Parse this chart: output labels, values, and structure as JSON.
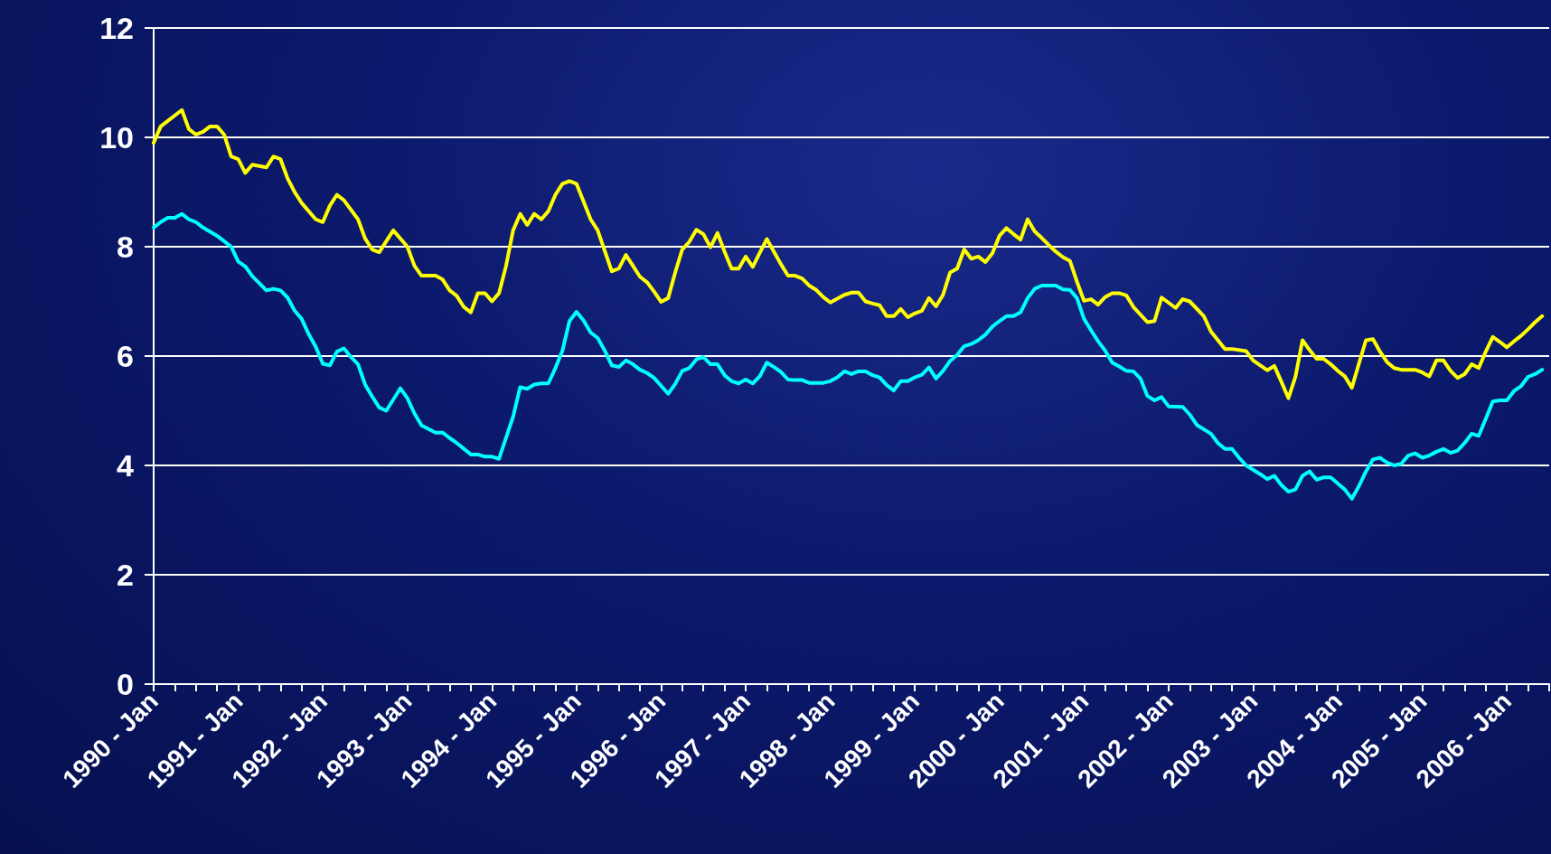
{
  "chart_data": {
    "type": "line",
    "marker": "none",
    "line_style": "solid",
    "grid": "y",
    "xlim": [
      "1990-01",
      "2006-07"
    ],
    "xticks": [
      {
        "value": "1990-01",
        "label": "1990 - Jan"
      },
      {
        "value": "1990-04",
        "label": null
      },
      {
        "value": "1990-07",
        "label": null
      },
      {
        "value": "1990-10",
        "label": null
      },
      {
        "value": "1991-01",
        "label": "1991 - Jan"
      },
      {
        "value": "1991-04",
        "label": null
      },
      {
        "value": "1991-07",
        "label": null
      },
      {
        "value": "1991-10",
        "label": null
      },
      {
        "value": "1992-01",
        "label": "1992 - Jan"
      },
      {
        "value": "1992-04",
        "label": null
      },
      {
        "value": "1992-07",
        "label": null
      },
      {
        "value": "1992-10",
        "label": null
      },
      {
        "value": "1993-01",
        "label": "1993 - Jan"
      },
      {
        "value": "1993-04",
        "label": null
      },
      {
        "value": "1993-07",
        "label": null
      },
      {
        "value": "1993-10",
        "label": null
      },
      {
        "value": "1994-01",
        "label": "1994 - Jan"
      },
      {
        "value": "1994-04",
        "label": null
      },
      {
        "value": "1994-07",
        "label": null
      },
      {
        "value": "1994-10",
        "label": null
      },
      {
        "value": "1995-01",
        "label": "1995 - Jan"
      },
      {
        "value": "1995-04",
        "label": null
      },
      {
        "value": "1995-07",
        "label": null
      },
      {
        "value": "1995-10",
        "label": null
      },
      {
        "value": "1996-01",
        "label": "1996 - Jan"
      },
      {
        "value": "1996-04",
        "label": null
      },
      {
        "value": "1996-07",
        "label": null
      },
      {
        "value": "1996-10",
        "label": null
      },
      {
        "value": "1997-01",
        "label": "1997 - Jan"
      },
      {
        "value": "1997-04",
        "label": null
      },
      {
        "value": "1997-07",
        "label": null
      },
      {
        "value": "1997-10",
        "label": null
      },
      {
        "value": "1998-01",
        "label": "1998 - Jan"
      },
      {
        "value": "1998-04",
        "label": null
      },
      {
        "value": "1998-07",
        "label": null
      },
      {
        "value": "1998-10",
        "label": null
      },
      {
        "value": "1999-01",
        "label": "1999 - Jan"
      },
      {
        "value": "1999-04",
        "label": null
      },
      {
        "value": "1999-07",
        "label": null
      },
      {
        "value": "1999-10",
        "label": null
      },
      {
        "value": "2000-01",
        "label": "2000 - Jan"
      },
      {
        "value": "2000-04",
        "label": null
      },
      {
        "value": "2000-07",
        "label": null
      },
      {
        "value": "2000-10",
        "label": null
      },
      {
        "value": "2001-01",
        "label": "2001 - Jan"
      },
      {
        "value": "2001-04",
        "label": null
      },
      {
        "value": "2001-07",
        "label": null
      },
      {
        "value": "2001-10",
        "label": null
      },
      {
        "value": "2002-01",
        "label": "2002 - Jan"
      },
      {
        "value": "2002-04",
        "label": null
      },
      {
        "value": "2002-07",
        "label": null
      },
      {
        "value": "2002-10",
        "label": null
      },
      {
        "value": "2003-01",
        "label": "2003 - Jan"
      },
      {
        "value": "2003-04",
        "label": null
      },
      {
        "value": "2003-07",
        "label": null
      },
      {
        "value": "2003-10",
        "label": null
      },
      {
        "value": "2004-01",
        "label": "2004 - Jan"
      },
      {
        "value": "2004-04",
        "label": null
      },
      {
        "value": "2004-07",
        "label": null
      },
      {
        "value": "2004-10",
        "label": null
      },
      {
        "value": "2005-01",
        "label": "2005 - Jan"
      },
      {
        "value": "2005-04",
        "label": null
      },
      {
        "value": "2005-07",
        "label": null
      },
      {
        "value": "2005-10",
        "label": null
      },
      {
        "value": "2006-01",
        "label": "2006 - Jan"
      },
      {
        "value": "2006-04",
        "label": null
      },
      {
        "value": "2006-07",
        "label": null
      }
    ],
    "ylim": [
      0,
      12
    ],
    "yticks": [
      0,
      2,
      4,
      6,
      8,
      10,
      12
    ],
    "series": [
      {
        "color": "#ffff00",
        "x": [
          "1990-01",
          "1990-02",
          "1990-05",
          "1990-06",
          "1990-07",
          "1990-08",
          "1990-09",
          "1990-10",
          "1990-11",
          "1990-12",
          "1991-01",
          "1991-02",
          "1991-03",
          "1991-05",
          "1991-06",
          "1991-07",
          "1991-08",
          "1991-09",
          "1991-10",
          "1991-12",
          "1992-01",
          "1992-02",
          "1992-03",
          "1992-04",
          "1992-06",
          "1992-07",
          "1992-08",
          "1992-09",
          "1992-11",
          "1993-01",
          "1993-02",
          "1993-03",
          "1993-05",
          "1993-06",
          "1993-07",
          "1993-08",
          "1993-09",
          "1993-10",
          "1993-11",
          "1993-12",
          "1994-01",
          "1994-02",
          "1994-03",
          "1994-04",
          "1994-05",
          "1994-06",
          "1994-07",
          "1994-08",
          "1994-09",
          "1994-10",
          "1994-11",
          "1994-12",
          "1995-01",
          "1995-03",
          "1995-04",
          "1995-06",
          "1995-07",
          "1995-08",
          "1995-09",
          "1995-10",
          "1995-11",
          "1995-12",
          "1996-01",
          "1996-02",
          "1996-03",
          "1996-04",
          "1996-05",
          "1996-06",
          "1996-07",
          "1996-08",
          "1996-09",
          "1996-10",
          "1996-11",
          "1996-12",
          "1997-01",
          "1997-02",
          "1997-03",
          "1997-04",
          "1997-05",
          "1997-06",
          "1997-07",
          "1997-08",
          "1997-09",
          "1997-10",
          "1997-11",
          "1997-12",
          "1998-01",
          "1998-02",
          "1998-03",
          "1998-04",
          "1998-05",
          "1998-06",
          "1998-07",
          "1998-08",
          "1998-09",
          "1998-10",
          "1998-11",
          "1998-12",
          "1999-01",
          "1999-02",
          "1999-03",
          "1999-04",
          "1999-05",
          "1999-06",
          "1999-07",
          "1999-08",
          "1999-09",
          "1999-10",
          "1999-11",
          "1999-12",
          "2000-01",
          "2000-02",
          "2000-03",
          "2000-04",
          "2000-05",
          "2000-06",
          "2000-07",
          "2000-08",
          "2000-09",
          "2000-10",
          "2000-11",
          "2000-12",
          "2001-01",
          "2001-02",
          "2001-03",
          "2001-04",
          "2001-05",
          "2001-06",
          "2001-07",
          "2001-08",
          "2001-10",
          "2001-11",
          "2001-12",
          "2002-02",
          "2002-03",
          "2002-04",
          "2002-06",
          "2002-07",
          "2002-09",
          "2002-10",
          "2002-12",
          "2003-01",
          "2003-03",
          "2003-04",
          "2003-05",
          "2003-06",
          "2003-07",
          "2003-08",
          "2003-09",
          "2003-10",
          "2003-11",
          "2003-12",
          "2004-01",
          "2004-02",
          "2004-03",
          "2004-04",
          "2004-05",
          "2004-06",
          "2004-07",
          "2004-08",
          "2004-09",
          "2004-10",
          "2004-12",
          "2005-01",
          "2005-02",
          "2005-03",
          "2005-04",
          "2005-05",
          "2005-06",
          "2005-07",
          "2005-08",
          "2005-09",
          "2005-10",
          "2005-11",
          "2005-12",
          "2006-01",
          "2006-02",
          "2006-03",
          "2006-04",
          "2006-05",
          "2006-06"
        ],
        "values": [
          9.9,
          10.2,
          10.5,
          10.15,
          10.05,
          10.1,
          10.2,
          10.2,
          10.05,
          9.65,
          9.6,
          9.35,
          9.5,
          9.45,
          9.65,
          9.6,
          9.25,
          9.0,
          8.8,
          8.5,
          8.45,
          8.75,
          8.95,
          8.85,
          8.5,
          8.15,
          7.95,
          7.9,
          8.3,
          8.0,
          7.65,
          7.47,
          7.47,
          7.4,
          7.2,
          7.1,
          6.9,
          6.8,
          7.15,
          7.15,
          7.0,
          7.15,
          7.65,
          8.3,
          8.6,
          8.4,
          8.6,
          8.5,
          8.65,
          8.95,
          9.15,
          9.2,
          9.15,
          8.5,
          8.3,
          7.55,
          7.6,
          7.85,
          7.65,
          7.45,
          7.35,
          7.18,
          6.99,
          7.06,
          7.53,
          7.95,
          8.09,
          8.31,
          8.23,
          7.99,
          8.25,
          7.91,
          7.6,
          7.6,
          7.82,
          7.63,
          7.89,
          8.14,
          7.91,
          7.68,
          7.47,
          7.47,
          7.42,
          7.29,
          7.21,
          7.08,
          6.98,
          7.05,
          7.12,
          7.16,
          7.16,
          7.0,
          6.96,
          6.93,
          6.73,
          6.73,
          6.86,
          6.71,
          6.78,
          6.83,
          7.06,
          6.91,
          7.12,
          7.53,
          7.6,
          7.95,
          7.78,
          7.82,
          7.72,
          7.88,
          8.2,
          8.34,
          8.23,
          8.13,
          8.5,
          8.28,
          8.16,
          8.03,
          7.91,
          7.81,
          7.74,
          7.36,
          7.01,
          7.04,
          6.94,
          7.08,
          7.15,
          7.15,
          7.11,
          6.9,
          6.62,
          6.64,
          7.07,
          6.88,
          7.04,
          7.0,
          6.73,
          6.45,
          6.13,
          6.13,
          6.09,
          5.92,
          5.74,
          5.82,
          5.53,
          5.23,
          5.62,
          6.29,
          6.11,
          5.95,
          5.95,
          5.85,
          5.73,
          5.63,
          5.42,
          5.86,
          6.29,
          6.31,
          6.08,
          5.89,
          5.78,
          5.75,
          5.75,
          5.7,
          5.63,
          5.92,
          5.92,
          5.73,
          5.6,
          5.67,
          5.85,
          5.78,
          6.08,
          6.35,
          6.26,
          6.16,
          6.27,
          6.37,
          6.49,
          6.62,
          6.73
        ]
      },
      {
        "color": "#00ffff",
        "x": [
          "1990-01",
          "1990-02",
          "1990-03",
          "1990-04",
          "1990-05",
          "1990-06",
          "1990-07",
          "1990-08",
          "1990-10",
          "1990-11",
          "1990-12",
          "1991-01",
          "1991-02",
          "1991-03",
          "1991-05",
          "1991-06",
          "1991-07",
          "1991-08",
          "1991-09",
          "1991-10",
          "1991-11",
          "1991-12",
          "1992-01",
          "1992-02",
          "1992-03",
          "1992-04",
          "1992-05",
          "1992-06",
          "1992-07",
          "1992-08",
          "1992-09",
          "1992-10",
          "1992-12",
          "1993-01",
          "1993-02",
          "1993-03",
          "1993-05",
          "1993-06",
          "1993-07",
          "1993-08",
          "1993-10",
          "1993-11",
          "1993-12",
          "1994-01",
          "1994-02",
          "1994-04",
          "1994-05",
          "1994-06",
          "1994-07",
          "1994-08",
          "1994-09",
          "1994-10",
          "1994-11",
          "1994-12",
          "1995-01",
          "1995-02",
          "1995-03",
          "1995-04",
          "1995-05",
          "1995-06",
          "1995-07",
          "1995-08",
          "1995-09",
          "1995-10",
          "1995-11",
          "1995-12",
          "1996-02",
          "1996-03",
          "1996-04",
          "1996-05",
          "1996-06",
          "1996-07",
          "1996-08",
          "1996-09",
          "1996-10",
          "1996-11",
          "1996-12",
          "1997-01",
          "1997-02",
          "1997-03",
          "1997-04",
          "1997-05",
          "1997-06",
          "1997-07",
          "1997-08",
          "1997-09",
          "1997-10",
          "1997-11",
          "1997-12",
          "1998-01",
          "1998-02",
          "1998-03",
          "1998-04",
          "1998-05",
          "1998-06",
          "1998-07",
          "1998-08",
          "1998-09",
          "1998-10",
          "1998-11",
          "1998-12",
          "1999-01",
          "1999-02",
          "1999-03",
          "1999-04",
          "1999-05",
          "1999-06",
          "1999-07",
          "1999-08",
          "1999-09",
          "1999-10",
          "1999-11",
          "1999-12",
          "2000-01",
          "2000-02",
          "2000-03",
          "2000-04",
          "2000-05",
          "2000-06",
          "2000-07",
          "2000-08",
          "2000-09",
          "2000-10",
          "2000-11",
          "2000-12",
          "2001-01",
          "2001-02",
          "2001-03",
          "2001-04",
          "2001-05",
          "2001-06",
          "2001-07",
          "2001-08",
          "2001-09",
          "2001-10",
          "2001-11",
          "2001-12",
          "2002-01",
          "2002-03",
          "2002-04",
          "2002-05",
          "2002-07",
          "2002-08",
          "2002-09",
          "2002-10",
          "2002-11",
          "2002-12",
          "2003-02",
          "2003-03",
          "2003-04",
          "2003-05",
          "2003-06",
          "2003-07",
          "2003-08",
          "2003-09",
          "2003-10",
          "2003-11",
          "2003-12",
          "2004-01",
          "2004-02",
          "2004-03",
          "2004-04",
          "2004-05",
          "2004-06",
          "2004-07",
          "2004-08",
          "2004-09",
          "2004-10",
          "2004-11",
          "2004-12",
          "2005-01",
          "2005-02",
          "2005-03",
          "2005-04",
          "2005-05",
          "2005-06",
          "2005-07",
          "2005-08",
          "2005-09",
          "2005-10",
          "2005-11",
          "2005-12",
          "2006-01",
          "2006-02",
          "2006-03",
          "2006-04",
          "2006-05",
          "2006-06"
        ],
        "values": [
          8.35,
          8.45,
          8.53,
          8.53,
          8.6,
          8.5,
          8.45,
          8.35,
          8.2,
          8.1,
          8.0,
          7.73,
          7.64,
          7.46,
          7.2,
          7.23,
          7.2,
          7.07,
          6.83,
          6.68,
          6.4,
          6.17,
          5.86,
          5.83,
          6.08,
          6.14,
          5.98,
          5.85,
          5.48,
          5.26,
          5.06,
          5.0,
          5.41,
          5.23,
          4.95,
          4.73,
          4.6,
          4.6,
          4.5,
          4.41,
          4.2,
          4.2,
          4.16,
          4.16,
          4.12,
          4.89,
          5.43,
          5.4,
          5.48,
          5.5,
          5.5,
          5.78,
          6.1,
          6.64,
          6.81,
          6.65,
          6.43,
          6.33,
          6.1,
          5.83,
          5.8,
          5.92,
          5.85,
          5.75,
          5.69,
          5.6,
          5.31,
          5.49,
          5.73,
          5.78,
          5.94,
          5.98,
          5.85,
          5.85,
          5.65,
          5.54,
          5.5,
          5.57,
          5.5,
          5.63,
          5.88,
          5.8,
          5.71,
          5.57,
          5.56,
          5.56,
          5.51,
          5.51,
          5.51,
          5.54,
          5.61,
          5.72,
          5.67,
          5.72,
          5.72,
          5.65,
          5.61,
          5.47,
          5.37,
          5.54,
          5.54,
          5.61,
          5.66,
          5.79,
          5.59,
          5.73,
          5.91,
          6.02,
          6.18,
          6.22,
          6.29,
          6.39,
          6.54,
          6.64,
          6.73,
          6.73,
          6.8,
          7.06,
          7.23,
          7.29,
          7.29,
          7.29,
          7.22,
          7.21,
          7.06,
          6.68,
          6.47,
          6.27,
          6.1,
          5.88,
          5.81,
          5.73,
          5.72,
          5.59,
          5.27,
          5.19,
          5.25,
          5.08,
          5.07,
          4.93,
          4.74,
          4.58,
          4.41,
          4.3,
          4.3,
          4.14,
          4.0,
          3.84,
          3.75,
          3.81,
          3.64,
          3.52,
          3.56,
          3.81,
          3.89,
          3.74,
          3.78,
          3.78,
          3.67,
          3.56,
          3.39,
          3.62,
          3.89,
          4.11,
          4.14,
          4.05,
          4.0,
          4.03,
          4.18,
          4.22,
          4.14,
          4.18,
          4.25,
          4.3,
          4.23,
          4.27,
          4.41,
          4.58,
          4.54,
          4.85,
          5.17,
          5.19,
          5.19,
          5.36,
          5.45,
          5.62,
          5.67,
          5.75
        ]
      }
    ]
  }
}
